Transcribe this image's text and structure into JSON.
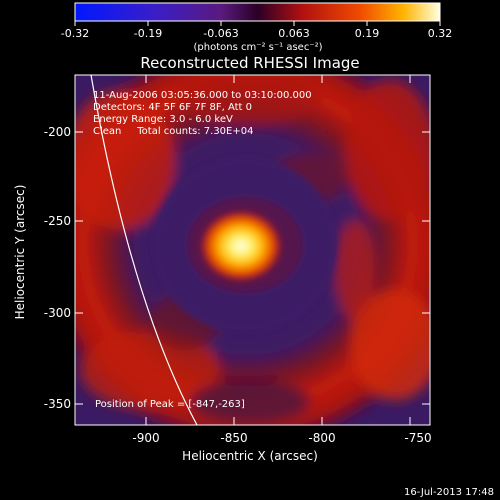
{
  "colorbar": {
    "tick_labels": [
      "-0.32",
      "-0.19",
      "-0.063",
      "0.063",
      "0.19",
      "0.32"
    ],
    "unit_label": "(photons cm⁻² s⁻¹ asec⁻²)"
  },
  "plot": {
    "title": "Reconstructed RHESSI Image",
    "xlabel": "Heliocentric X (arcsec)",
    "ylabel": "Heliocentric Y (arcsec)",
    "x_ticks": [
      "-900",
      "-850",
      "-800",
      "-750"
    ],
    "y_ticks": [
      "-200",
      "-250",
      "-300",
      "-350"
    ]
  },
  "annotations": {
    "line1": "11-Aug-2006 03:05:36.000 to 03:10:00.000",
    "line2": "Detectors: 4F 5F 6F 7F 8F, Att 0",
    "line3": "Energy Range: 3.0 - 6.0 keV",
    "line4": "Clean     Total counts: 7.30E+04",
    "peak": "Position of Peak = [-847,-263]"
  },
  "timestamp": "16-Jul-2013 17:48"
}
